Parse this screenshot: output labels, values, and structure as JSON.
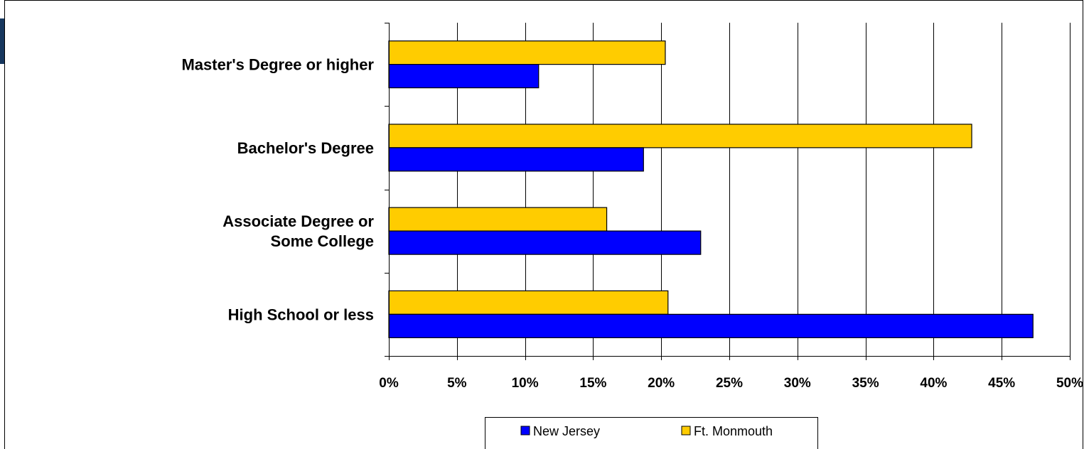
{
  "colors": {
    "new_jersey": "#0000ff",
    "ft_monmouth": "#ffcc00",
    "grid": "#000000",
    "accent": "#17375e"
  },
  "chart_data": {
    "type": "bar",
    "orientation": "horizontal",
    "categories": [
      "Master's Degree or higher",
      "Bachelor's Degree",
      "Associate Degree or Some College",
      "High School or less"
    ],
    "category_lines": [
      [
        "Master's Degree or higher"
      ],
      [
        "Bachelor's Degree"
      ],
      [
        "Associate Degree or",
        "Some College"
      ],
      [
        "High School or less"
      ]
    ],
    "series": [
      {
        "name": "New Jersey",
        "values": [
          11.0,
          18.7,
          22.9,
          47.3
        ]
      },
      {
        "name": "Ft. Monmouth",
        "values": [
          20.3,
          42.8,
          16.0,
          20.5
        ]
      }
    ],
    "xlim": [
      0,
      50
    ],
    "x_ticks": [
      "0%",
      "5%",
      "10%",
      "15%",
      "20%",
      "25%",
      "30%",
      "35%",
      "40%",
      "45%",
      "50%"
    ],
    "x_tick_values": [
      0,
      5,
      10,
      15,
      20,
      25,
      30,
      35,
      40,
      45,
      50
    ],
    "grid": "vertical",
    "legend_position": "bottom",
    "title": "",
    "xlabel": "",
    "ylabel": ""
  }
}
